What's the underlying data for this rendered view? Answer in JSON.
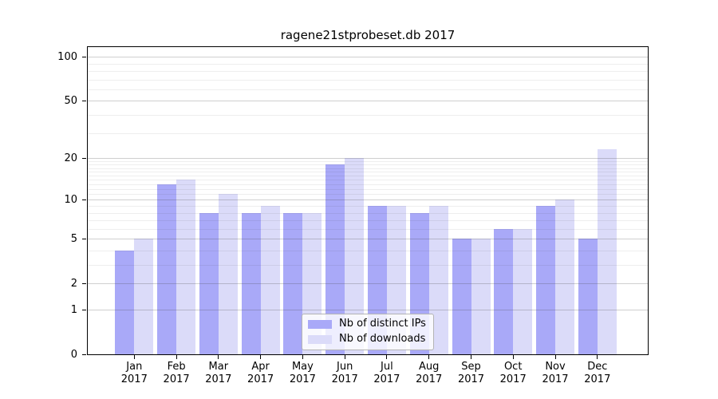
{
  "title": "ragene21stprobeset.db 2017",
  "chart_data": {
    "type": "bar",
    "title": "ragene21stprobeset.db 2017",
    "scale": "log1p",
    "ylim": [
      0,
      117
    ],
    "grid": "on",
    "legend_position": "lower-center",
    "year": "2017",
    "categories": [
      "Jan",
      "Feb",
      "Mar",
      "Apr",
      "May",
      "Jun",
      "Jul",
      "Aug",
      "Sep",
      "Oct",
      "Nov",
      "Dec"
    ],
    "y_ticks": [
      0,
      1,
      2,
      5,
      10,
      20,
      50,
      100
    ],
    "y_minor_gridlines": [
      3,
      4,
      6,
      7,
      8,
      9,
      11,
      12,
      13,
      14,
      15,
      16,
      17,
      18,
      19,
      30,
      40,
      60,
      70,
      80,
      90
    ],
    "series": [
      {
        "name": "Nb of distinct IPs",
        "color": "#a9a9f8",
        "values": [
          4,
          13,
          8,
          8,
          8,
          18,
          9,
          8,
          5,
          6,
          9,
          5
        ]
      },
      {
        "name": "Nb of downloads",
        "color": "#dbdbf9",
        "values": [
          5,
          14,
          11,
          9,
          8,
          20,
          9,
          9,
          5,
          6,
          10,
          23
        ]
      }
    ]
  }
}
